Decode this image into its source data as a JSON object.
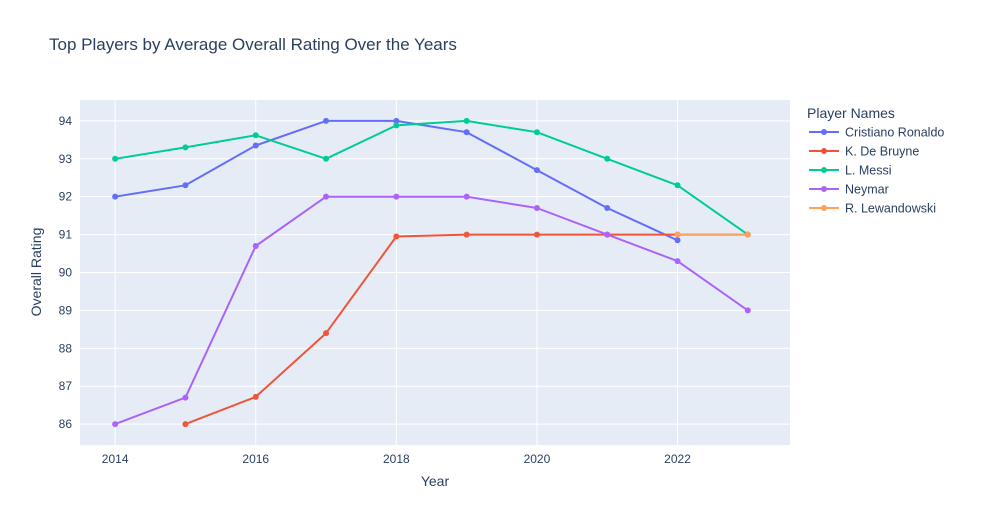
{
  "chart_data": {
    "type": "line",
    "title": "Top Players by Average Overall Rating Over the Years",
    "xlabel": "Year",
    "ylabel": "Overall Rating",
    "xlim": [
      2013.5,
      2023.6
    ],
    "ylim": [
      85.45,
      94.55
    ],
    "x_ticks": [
      2014,
      2016,
      2018,
      2020,
      2022
    ],
    "y_ticks": [
      86,
      87,
      88,
      89,
      90,
      91,
      92,
      93,
      94
    ],
    "grid": true,
    "legend_title": "Player Names",
    "legend_position": "right",
    "series": [
      {
        "name": "Cristiano Ronaldo",
        "color": "#636efa",
        "x": [
          2014,
          2015,
          2016,
          2017,
          2018,
          2019,
          2020,
          2021,
          2022
        ],
        "y": [
          92,
          92.3,
          93.35,
          94,
          94,
          93.7,
          92.7,
          91.7,
          90.85
        ]
      },
      {
        "name": "K. De Bruyne",
        "color": "#ef553b",
        "x": [
          2015,
          2016,
          2017,
          2018,
          2019,
          2020,
          2021,
          2022,
          2023
        ],
        "y": [
          86,
          86.72,
          88.4,
          90.95,
          91,
          91,
          91,
          91,
          91
        ]
      },
      {
        "name": "L. Messi",
        "color": "#00cc96",
        "x": [
          2014,
          2015,
          2016,
          2017,
          2018,
          2019,
          2020,
          2021,
          2022,
          2023
        ],
        "y": [
          93,
          93.3,
          93.62,
          93,
          93.88,
          94,
          93.7,
          93,
          92.3,
          91
        ]
      },
      {
        "name": "Neymar",
        "color": "#ab63fa",
        "x": [
          2014,
          2015,
          2016,
          2017,
          2018,
          2019,
          2020,
          2021,
          2022,
          2023
        ],
        "y": [
          86,
          86.7,
          90.7,
          92,
          92,
          92,
          91.7,
          91,
          90.3,
          89
        ]
      },
      {
        "name": "R. Lewandowski",
        "color": "#ffa15a",
        "x": [
          2022,
          2023
        ],
        "y": [
          91,
          91
        ]
      }
    ]
  }
}
